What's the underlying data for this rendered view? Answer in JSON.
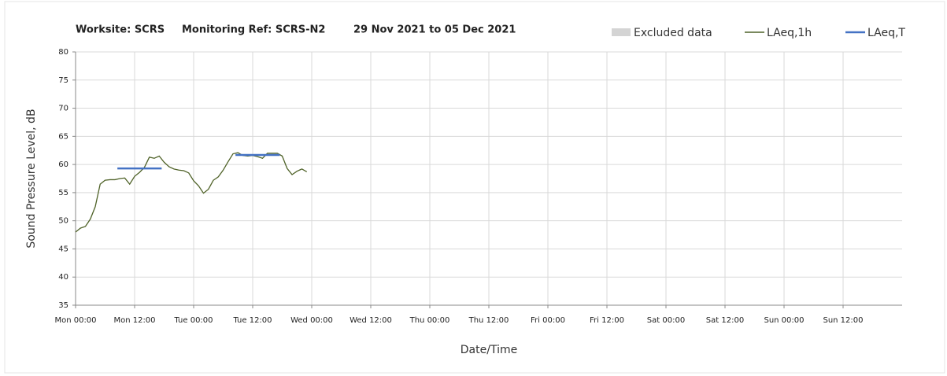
{
  "chart_data": {
    "type": "line",
    "title": [
      "Worksite: SCRS",
      "Monitoring Ref: SCRS-N2",
      "29 Nov 2021 to 05 Dec 2021"
    ],
    "x_label": "Date/Time",
    "y_label": "Sound Pressure Level, dB",
    "xlim": [
      0,
      168
    ],
    "xticks": [
      {
        "value": 0,
        "label": "Mon 00:00"
      },
      {
        "value": 12,
        "label": "Mon 12:00"
      },
      {
        "value": 24,
        "label": "Tue 00:00"
      },
      {
        "value": 36,
        "label": "Tue 12:00"
      },
      {
        "value": 48,
        "label": "Wed 00:00"
      },
      {
        "value": 60,
        "label": "Wed 12:00"
      },
      {
        "value": 72,
        "label": "Thu 00:00"
      },
      {
        "value": 84,
        "label": "Thu 12:00"
      },
      {
        "value": 96,
        "label": "Fri 00:00"
      },
      {
        "value": 108,
        "label": "Fri 12:00"
      },
      {
        "value": 120,
        "label": "Sat 00:00"
      },
      {
        "value": 132,
        "label": "Sat 12:00"
      },
      {
        "value": 144,
        "label": "Sun 00:00"
      },
      {
        "value": 156,
        "label": "Sun 12:00"
      }
    ],
    "ylim": [
      35,
      80
    ],
    "yticks": [
      35,
      40,
      45,
      50,
      55,
      60,
      65,
      70,
      75,
      80
    ],
    "grid": true,
    "legend": "top-right",
    "excluded_data": {
      "name": "Excluded data",
      "color": "#d4d4d4"
    },
    "series": [
      {
        "name": "LAeq,1h",
        "color": "#4f6228",
        "x": [
          0,
          1,
          2,
          3,
          4,
          5,
          6,
          7,
          8,
          9,
          10,
          11,
          12,
          13,
          14,
          15,
          16,
          17,
          18,
          19,
          20,
          21,
          22,
          23,
          24,
          25,
          26,
          27,
          28,
          29,
          30,
          31,
          32,
          33,
          34,
          35,
          36,
          37,
          38,
          39,
          40,
          41,
          42,
          43,
          44,
          45,
          46,
          47
        ],
        "values": [
          48.0,
          48.7,
          49.0,
          50.3,
          52.5,
          56.5,
          57.2,
          57.3,
          57.3,
          57.5,
          57.6,
          56.5,
          57.9,
          58.6,
          59.5,
          61.3,
          61.1,
          61.5,
          60.4,
          59.6,
          59.2,
          59.0,
          58.9,
          58.5,
          57.1,
          56.2,
          54.9,
          55.6,
          57.2,
          57.8,
          59.0,
          60.5,
          61.9,
          62.1,
          61.6,
          61.5,
          61.6,
          61.4,
          61.1,
          62.0,
          62.0,
          62.0,
          61.5,
          59.3,
          58.2,
          58.8,
          59.2,
          58.7
        ]
      },
      {
        "name": "LAeq,T",
        "color": "#4472c4",
        "x": [
          8.5,
          17.5,
          17.5,
          32.5,
          41.5
        ],
        "values": [
          59.3,
          59.3,
          null,
          61.7,
          61.7
        ]
      }
    ]
  }
}
